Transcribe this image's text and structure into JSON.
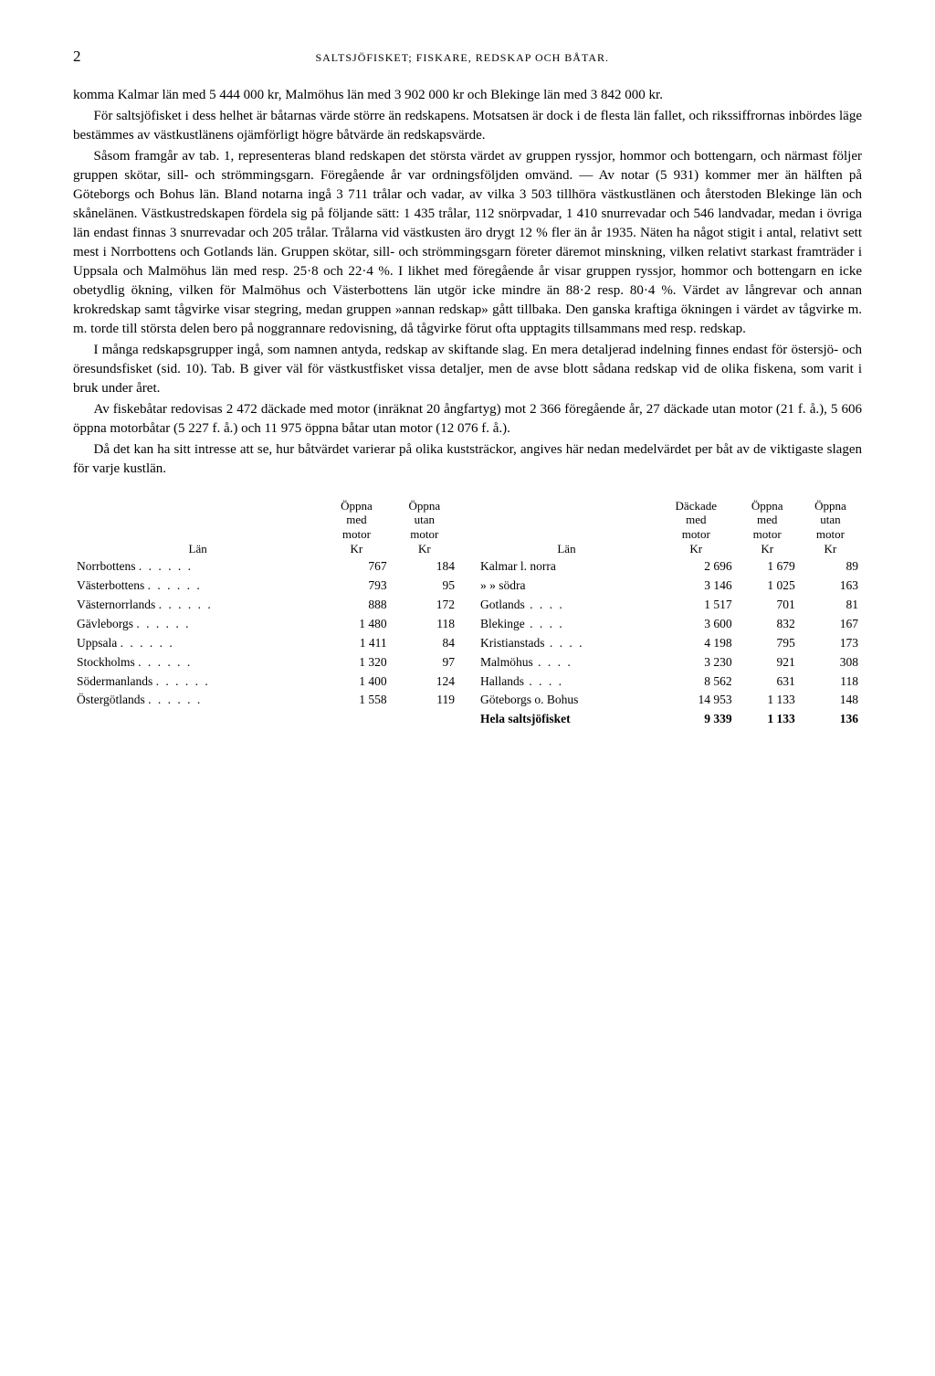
{
  "page_number": "2",
  "page_title": "SALTSJÖFISKET; FISKARE, REDSKAP OCH BÅTAR.",
  "paragraphs": [
    "komma Kalmar län med 5 444 000 kr, Malmöhus län med 3 902 000 kr och Blekinge län med 3 842 000 kr.",
    "För saltsjöfisket i dess helhet är båtarnas värde större än redskapens. Motsatsen är dock i de flesta län fallet, och rikssiffrornas inbördes läge bestämmes av västkustlänens ojämförligt högre båtvärde än redskapsvärde.",
    "Såsom framgår av tab. 1, representeras bland redskapen det största värdet av gruppen ryssjor, hommor och bottengarn, och närmast följer gruppen skötar, sill- och strömmingsgarn. Föregående år var ordningsföljden omvänd. — Av notar (5 931) kommer mer än hälften på Göteborgs och Bohus län. Bland notarna ingå 3 711 trålar och vadar, av vilka 3 503 tillhöra västkustlänen och återstoden Blekinge län och skånelänen. Västkustredskapen fördela sig på följande sätt: 1 435 trålar, 112 snörpvadar, 1 410 snurrevadar och 546 landvadar, medan i övriga län endast finnas 3 snurrevadar och 205 trålar. Trålarna vid västkusten äro drygt 12 % fler än år 1935. Näten ha något stigit i antal, relativt sett mest i Norrbottens och Gotlands län. Gruppen skötar, sill- och strömmingsgarn företer däremot minskning, vilken relativt starkast framträder i Uppsala och Malmöhus län med resp. 25·8 och 22·4 %. I likhet med föregående år visar gruppen ryssjor, hommor och bottengarn en icke obetydlig ökning, vilken för Malmöhus och Västerbottens län utgör icke mindre än 88·2 resp. 80·4 %. Värdet av långrevar och annan krokredskap samt tågvirke visar stegring, medan gruppen »annan redskap» gått tillbaka. Den ganska kraftiga ökningen i värdet av tågvirke m. m. torde till största delen bero på noggrannare redovisning, då tågvirke förut ofta upptagits tillsammans med resp. redskap.",
    "I många redskapsgrupper ingå, som namnen antyda, redskap av skiftande slag. En mera detaljerad indelning finnes endast för östersjö- och öresundsfisket (sid. 10). Tab. B giver väl för västkustfisket vissa detaljer, men de avse blott sådana redskap vid de olika fiskena, som varit i bruk under året.",
    "Av fiskebåtar redovisas 2 472 däckade med motor (inräknat 20 ångfartyg) mot 2 366 föregående år, 27 däckade utan motor (21 f. å.), 5 606 öppna motorbåtar (5 227 f. å.) och 11 975 öppna båtar utan motor (12 076 f. å.).",
    "Då det kan ha sitt intresse att se, hur båtvärdet varierar på olika kuststräckor, angives här nedan medelvärdet per båt av de viktigaste slagen för varje kustlän."
  ],
  "table": {
    "headers": {
      "lan": "Län",
      "oppna_med": "Öppna med motor Kr",
      "oppna_utan": "Öppna utan motor Kr",
      "dackade_med": "Däckade med motor Kr"
    },
    "left_rows": [
      {
        "label": "Norrbottens",
        "v1": "767",
        "v2": "184"
      },
      {
        "label": "Västerbottens",
        "v1": "793",
        "v2": "95"
      },
      {
        "label": "Västernorrlands",
        "v1": "888",
        "v2": "172"
      },
      {
        "label": "Gävleborgs",
        "v1": "1 480",
        "v2": "118"
      },
      {
        "label": "Uppsala",
        "v1": "1 411",
        "v2": "84"
      },
      {
        "label": "Stockholms",
        "v1": "1 320",
        "v2": "97"
      },
      {
        "label": "Södermanlands",
        "v1": "1 400",
        "v2": "124"
      },
      {
        "label": "Östergötlands",
        "v1": "1 558",
        "v2": "119"
      }
    ],
    "right_rows": [
      {
        "label": "Kalmar l. norra",
        "v1": "2 696",
        "v2": "1 679",
        "v3": "89"
      },
      {
        "label": "»        » södra",
        "v1": "3 146",
        "v2": "1 025",
        "v3": "163"
      },
      {
        "label": "Gotlands",
        "v1": "1 517",
        "v2": "701",
        "v3": "81"
      },
      {
        "label": "Blekinge",
        "v1": "3 600",
        "v2": "832",
        "v3": "167"
      },
      {
        "label": "Kristianstads",
        "v1": "4 198",
        "v2": "795",
        "v3": "173"
      },
      {
        "label": "Malmöhus",
        "v1": "3 230",
        "v2": "921",
        "v3": "308"
      },
      {
        "label": "Hallands",
        "v1": "8 562",
        "v2": "631",
        "v3": "118"
      },
      {
        "label": "Göteborgs o. Bohus",
        "v1": "14 953",
        "v2": "1 133",
        "v3": "148"
      }
    ],
    "total": {
      "label": "Hela saltsjöfisket",
      "v1": "9 339",
      "v2": "1 133",
      "v3": "136"
    }
  }
}
